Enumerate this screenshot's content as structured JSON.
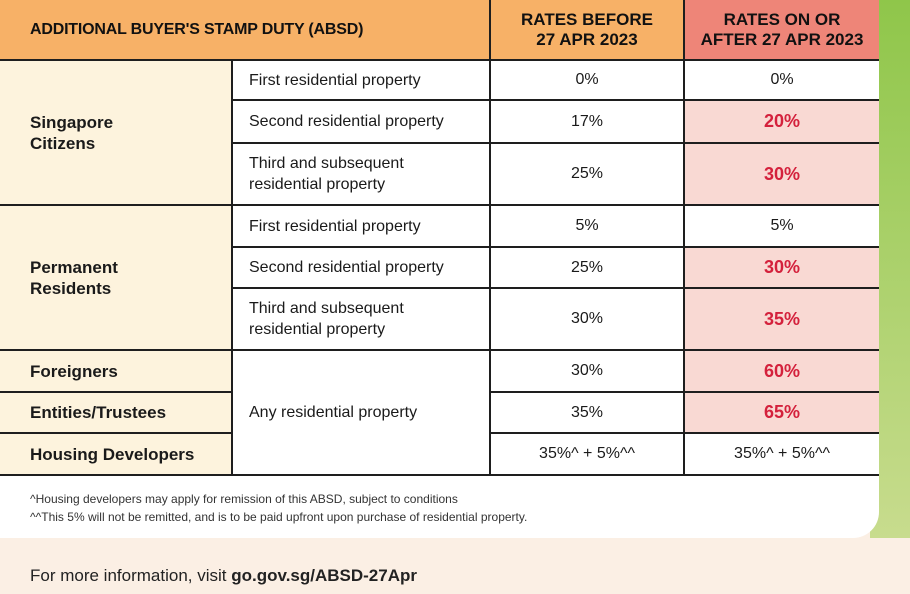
{
  "header": {
    "title": "ADDITIONAL BUYER'S STAMP DUTY (ABSD)",
    "before_line1": "RATES BEFORE",
    "before_line2": "27 APR 2023",
    "after_line1": "RATES ON OR",
    "after_line2": "AFTER 27 APR 2023"
  },
  "groups": {
    "citizens": {
      "line1": "Singapore",
      "line2": "Citizens",
      "rows": [
        {
          "property": "First residential property",
          "before": "0%",
          "after": "0%"
        },
        {
          "property_line1": "Second residential property",
          "before": "17%",
          "after": "20%"
        },
        {
          "property_line1": "Third and subsequent",
          "property_line2": "residential property",
          "before": "25%",
          "after": "30%"
        }
      ]
    },
    "pr": {
      "line1": "Permanent",
      "line2": "Residents",
      "rows": [
        {
          "property": "First residential property",
          "before": "5%",
          "after": "5%"
        },
        {
          "property_line1": "Second residential property",
          "before": "25%",
          "after": "30%"
        },
        {
          "property_line1": "Third and subsequent",
          "property_line2": "residential property",
          "before": "30%",
          "after": "35%"
        }
      ]
    },
    "others": {
      "property": "Any residential property",
      "rows": [
        {
          "category": "Foreigners",
          "before": "30%",
          "after": "60%"
        },
        {
          "category": "Entities/Trustees",
          "before": "35%",
          "after": "65%"
        },
        {
          "category": "Housing Developers",
          "before": "35%^ + 5%^^",
          "after": "35%^ + 5%^^"
        }
      ]
    }
  },
  "notes": [
    "^Housing developers may apply for remission of this ABSD, subject to conditions",
    "^^This 5% will not be remitted, and is to be paid upfront upon purchase of residential property."
  ],
  "footer": {
    "prefix": "For more information, visit ",
    "link": "go.gov.sg/ABSD-27Apr"
  },
  "colors": {
    "header_orange": "#f7b167",
    "header_red": "#ee8578",
    "category_cream": "#fdf3dd",
    "highlight_pink": "#f9d9d3",
    "highlight_text": "#d4213c",
    "strip_green": "#8fc64a"
  }
}
